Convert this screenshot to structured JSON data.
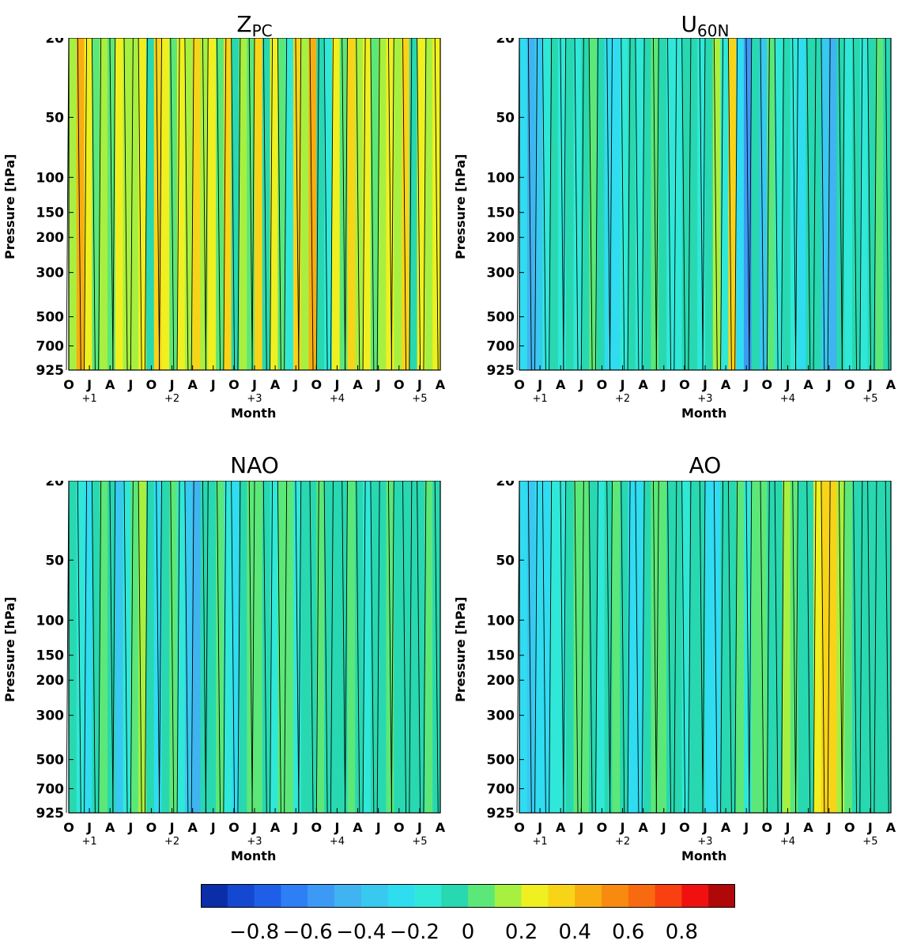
{
  "panels": [
    {
      "id": "zpc",
      "title_main": "Z",
      "title_sub": "PC"
    },
    {
      "id": "u60n",
      "title_main": "U",
      "title_sub": "60N"
    },
    {
      "id": "nao",
      "title_main": "NAO",
      "title_sub": ""
    },
    {
      "id": "ao",
      "title_main": "AO",
      "title_sub": ""
    }
  ],
  "axes": {
    "ylabel": "Pressure [hPa]",
    "xlabel": "Month",
    "pressure_levels": [
      20,
      50,
      100,
      150,
      200,
      300,
      500,
      700,
      925
    ],
    "month_ticks": [
      "O",
      "J",
      "A",
      "J",
      "O",
      "J",
      "A",
      "J",
      "O",
      "J",
      "A",
      "J",
      "O",
      "J",
      "A",
      "J",
      "O",
      "J",
      "A"
    ],
    "year_labels": [
      {
        "after": 1,
        "text": "+1"
      },
      {
        "after": 5,
        "text": "+2"
      },
      {
        "after": 9,
        "text": "+3"
      },
      {
        "after": 13,
        "text": "+4"
      },
      {
        "after": 17,
        "text": "+5"
      }
    ]
  },
  "colorbar": {
    "colors": [
      "#0a2ea8",
      "#1548d0",
      "#1f5fe8",
      "#2e7ef5",
      "#3c9af5",
      "#40b4f0",
      "#38c8f0",
      "#30dcf0",
      "#30e8d8",
      "#28d8b0",
      "#5ce878",
      "#a8f040",
      "#f0f020",
      "#f8d418",
      "#f8ae10",
      "#f88a10",
      "#f86a10",
      "#f84010",
      "#f01010",
      "#b00808"
    ],
    "tick_labels": [
      "−0.8",
      "−0.6",
      "−0.4",
      "−0.2",
      "0",
      "0.2",
      "0.4",
      "0.6",
      "0.8"
    ],
    "tick_values": [
      -0.8,
      -0.6,
      -0.4,
      -0.2,
      0,
      0.2,
      0.4,
      0.6,
      0.8
    ],
    "range": [
      -1.0,
      1.0
    ]
  },
  "chart_data": [
    {
      "type": "heatmap",
      "title": "ZPC",
      "ylabel": "Pressure [hPa]",
      "xlabel": "Month",
      "x": [
        "O",
        "J",
        "A",
        "J",
        "O",
        "J",
        "A",
        "J",
        "O",
        "J",
        "A",
        "J",
        "O",
        "J",
        "A",
        "J",
        "O",
        "J",
        "A"
      ],
      "y": [
        20,
        50,
        100,
        150,
        200,
        300,
        500,
        700,
        925
      ],
      "column_values": [
        0.1,
        0.45,
        0.25,
        0.05,
        0.1,
        0.0,
        0.25,
        0.15,
        0.1,
        0.2,
        -0.05,
        0.3,
        0.2,
        0.0,
        0.25,
        0.15,
        0.35,
        0.1,
        0.2,
        0.0,
        0.3,
        -0.1,
        0.1,
        0.05,
        0.3,
        -0.05,
        0.25,
        0.0,
        -0.2,
        0.3,
        0.15,
        0.4,
        -0.1,
        -0.15,
        0.2,
        0.0,
        0.3,
        0.1,
        0.25,
        0.05,
        0.15,
        0.2,
        0.1,
        0.3,
        -0.05,
        0.2,
        0.1,
        0.25
      ]
    },
    {
      "type": "heatmap",
      "title": "U60N",
      "ylabel": "Pressure [hPa]",
      "xlabel": "Month",
      "x": [
        "O",
        "J",
        "A",
        "J",
        "O",
        "J",
        "A",
        "J",
        "O",
        "J",
        "A",
        "J",
        "O",
        "J",
        "A",
        "J",
        "O",
        "J",
        "A"
      ],
      "y": [
        20,
        50,
        100,
        150,
        200,
        300,
        500,
        700,
        925
      ],
      "column_values": [
        -0.3,
        -0.45,
        -0.35,
        -0.2,
        -0.1,
        -0.15,
        -0.05,
        -0.2,
        -0.1,
        0.0,
        -0.1,
        -0.25,
        -0.3,
        -0.15,
        -0.05,
        -0.15,
        -0.1,
        0.0,
        -0.05,
        -0.2,
        -0.15,
        -0.1,
        -0.05,
        -0.2,
        -0.1,
        0.1,
        -0.2,
        0.3,
        -0.3,
        -0.6,
        -0.1,
        -0.4,
        0.0,
        -0.2,
        -0.05,
        -0.15,
        -0.3,
        -0.05,
        -0.1,
        -0.4,
        -0.5,
        -0.05,
        -0.2,
        -0.1,
        -0.15,
        -0.05,
        0.0,
        -0.05
      ]
    },
    {
      "type": "heatmap",
      "title": "NAO",
      "ylabel": "Pressure [hPa]",
      "xlabel": "Month",
      "x": [
        "O",
        "J",
        "A",
        "J",
        "O",
        "J",
        "A",
        "J",
        "O",
        "J",
        "A",
        "J",
        "O",
        "J",
        "A",
        "J",
        "O",
        "J",
        "A"
      ],
      "y": [
        20,
        50,
        100,
        150,
        200,
        300,
        500,
        700,
        925
      ],
      "column_values": [
        -0.1,
        -0.15,
        -0.25,
        -0.05,
        0.05,
        -0.1,
        -0.35,
        -0.15,
        0.0,
        0.1,
        -0.05,
        -0.3,
        -0.1,
        0.05,
        -0.15,
        -0.35,
        -0.45,
        -0.1,
        -0.05,
        0.0,
        -0.2,
        -0.3,
        -0.05,
        0.05,
        0.0,
        -0.1,
        -0.2,
        0.0,
        0.05,
        -0.15,
        -0.1,
        -0.05,
        0.0,
        -0.05,
        -0.1,
        -0.05,
        0.0,
        -0.1,
        -0.2,
        -0.1,
        -0.05,
        0.0,
        -0.1,
        -0.05,
        -0.1,
        -0.05,
        0.0,
        -0.05
      ]
    },
    {
      "type": "heatmap",
      "title": "AO",
      "ylabel": "Pressure [hPa]",
      "xlabel": "Month",
      "x": [
        "O",
        "J",
        "A",
        "J",
        "O",
        "J",
        "A",
        "J",
        "O",
        "J",
        "A",
        "J",
        "O",
        "J",
        "A",
        "J",
        "O",
        "J",
        "A"
      ],
      "y": [
        20,
        50,
        100,
        150,
        200,
        300,
        500,
        700,
        925
      ],
      "column_values": [
        -0.3,
        -0.35,
        -0.3,
        -0.25,
        -0.15,
        -0.2,
        -0.1,
        0.0,
        0.05,
        -0.1,
        -0.2,
        -0.05,
        0.05,
        -0.1,
        -0.3,
        -0.25,
        -0.05,
        0.0,
        0.05,
        -0.05,
        -0.1,
        -0.15,
        -0.05,
        -0.1,
        -0.25,
        -0.3,
        -0.1,
        -0.05,
        0.0,
        -0.15,
        0.0,
        0.05,
        -0.1,
        -0.05,
        0.1,
        0.0,
        -0.1,
        -0.05,
        0.2,
        0.3,
        0.35,
        0.1,
        0.0,
        -0.05,
        -0.1,
        -0.05,
        -0.1,
        -0.05
      ]
    }
  ]
}
